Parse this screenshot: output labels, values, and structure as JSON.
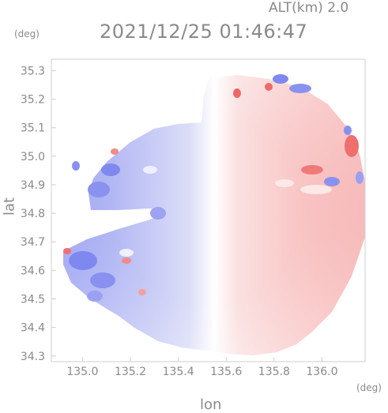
{
  "header": {
    "alt_label": "ALT(km) 2.0",
    "timestamp": "2021/12/25 01:46:47"
  },
  "axes": {
    "x_unit": "(deg)",
    "y_unit": "(deg)",
    "xlabel": "lon",
    "ylabel": "lat"
  },
  "chart_data": {
    "type": "heatmap",
    "xlabel": "lon",
    "ylabel": "lat",
    "xlim": [
      134.87,
      136.18
    ],
    "ylim": [
      34.28,
      35.34
    ],
    "x_ticks": [
      "135.0",
      "135.2",
      "135.4",
      "135.6",
      "135.8",
      "136.0"
    ],
    "y_ticks": [
      "34.3",
      "34.4",
      "34.5",
      "34.6",
      "34.7",
      "34.8",
      "34.9",
      "35.0",
      "35.1",
      "35.2",
      "35.3"
    ],
    "radar_center": {
      "lon": 135.52,
      "lat": 34.82
    },
    "colors": {
      "negative": "#8890f0",
      "positive": "#f4a0a0",
      "zero": "#ffffff",
      "frame": "#cfcfcf"
    }
  }
}
